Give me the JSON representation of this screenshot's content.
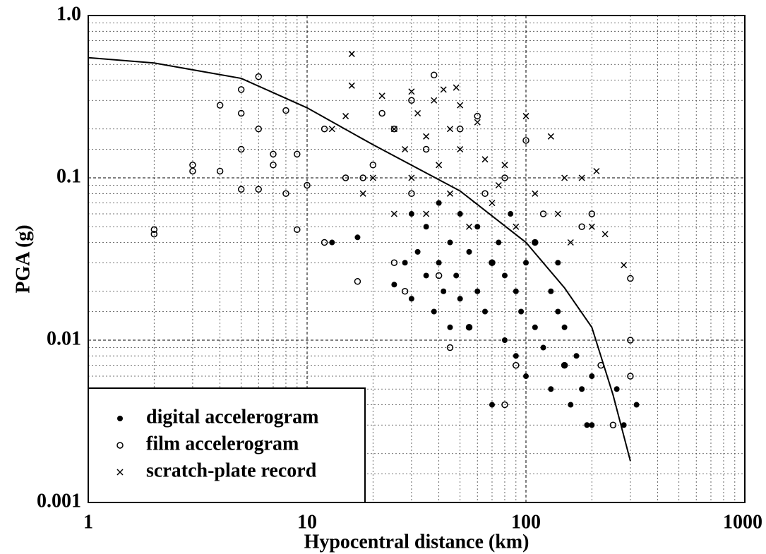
{
  "chart_data": {
    "type": "scatter",
    "xlabel": "Hypocentral distance (km)",
    "ylabel": "PGA (g)",
    "xlog": true,
    "ylog": true,
    "grid": true,
    "minor_grid": true,
    "legend": "lower left",
    "xlim": [
      1,
      1000
    ],
    "ylim": [
      0.001,
      1
    ],
    "xticks": [
      1,
      10,
      100,
      1000
    ],
    "yticks": [
      0.001,
      0.01,
      0.1,
      {
        "value": 1,
        "label": "1.0"
      }
    ],
    "series": [
      {
        "name": "digital accelerogram",
        "marker": "dot",
        "color": "#000000",
        "x": [
          13,
          17,
          25,
          28,
          30,
          30,
          32,
          35,
          35,
          38,
          40,
          40,
          42,
          45,
          45,
          48,
          50,
          50,
          55,
          55,
          60,
          60,
          65,
          70,
          70,
          75,
          80,
          80,
          85,
          90,
          90,
          95,
          100,
          100,
          110,
          110,
          120,
          130,
          130,
          140,
          140,
          150,
          150,
          160,
          170,
          180,
          190,
          200,
          200,
          260,
          280,
          320
        ],
        "values": [
          0.04,
          0.043,
          0.022,
          0.03,
          0.06,
          0.018,
          0.035,
          0.025,
          0.05,
          0.015,
          0.03,
          0.07,
          0.02,
          0.012,
          0.04,
          0.025,
          0.018,
          0.06,
          0.012,
          0.035,
          0.02,
          0.05,
          0.015,
          0.004,
          0.03,
          0.04,
          0.01,
          0.025,
          0.06,
          0.008,
          0.02,
          0.015,
          0.03,
          0.006,
          0.012,
          0.04,
          0.009,
          0.02,
          0.005,
          0.015,
          0.03,
          0.007,
          0.012,
          0.004,
          0.008,
          0.005,
          0.003,
          0.006,
          0.003,
          0.005,
          0.003,
          0.004
        ]
      },
      {
        "name": "film accelerogram",
        "marker": "circle",
        "color": "#000000",
        "x": [
          2,
          2,
          3,
          3,
          4,
          4,
          5,
          5,
          5,
          5,
          6,
          6,
          6,
          7,
          7,
          8,
          8,
          9,
          9,
          10,
          12,
          12,
          15,
          17,
          18,
          20,
          22,
          25,
          25,
          28,
          30,
          30,
          35,
          38,
          40,
          45,
          50,
          55,
          60,
          65,
          70,
          80,
          80,
          90,
          100,
          110,
          120,
          150,
          180,
          200,
          220,
          250,
          300,
          300,
          300
        ],
        "values": [
          0.048,
          0.045,
          0.12,
          0.11,
          0.28,
          0.11,
          0.35,
          0.25,
          0.15,
          0.085,
          0.42,
          0.2,
          0.085,
          0.14,
          0.12,
          0.26,
          0.08,
          0.14,
          0.048,
          0.09,
          0.2,
          0.04,
          0.1,
          0.023,
          0.1,
          0.12,
          0.25,
          0.2,
          0.03,
          0.02,
          0.3,
          0.08,
          0.15,
          0.43,
          0.025,
          0.009,
          0.2,
          0.012,
          0.24,
          0.08,
          0.03,
          0.004,
          0.1,
          0.007,
          0.17,
          0.04,
          0.06,
          0.007,
          0.05,
          0.06,
          0.007,
          0.003,
          0.024,
          0.01,
          0.006
        ]
      },
      {
        "name": "scratch-plate record",
        "marker": "cross",
        "color": "#000000",
        "x": [
          13,
          15,
          16,
          16,
          18,
          20,
          22,
          25,
          25,
          28,
          30,
          30,
          32,
          35,
          35,
          38,
          40,
          42,
          45,
          45,
          48,
          50,
          50,
          55,
          60,
          65,
          70,
          75,
          80,
          90,
          100,
          110,
          130,
          140,
          150,
          160,
          180,
          200,
          210,
          230,
          280
        ],
        "values": [
          0.2,
          0.24,
          0.58,
          0.37,
          0.08,
          0.1,
          0.32,
          0.06,
          0.2,
          0.15,
          0.34,
          0.1,
          0.25,
          0.18,
          0.06,
          0.3,
          0.12,
          0.35,
          0.2,
          0.08,
          0.36,
          0.15,
          0.28,
          0.05,
          0.22,
          0.13,
          0.07,
          0.09,
          0.12,
          0.05,
          0.24,
          0.08,
          0.18,
          0.06,
          0.1,
          0.04,
          0.1,
          0.05,
          0.11,
          0.045,
          0.029
        ]
      }
    ],
    "curve": {
      "color": "#000000",
      "x": [
        1,
        2,
        5,
        10,
        20,
        50,
        100,
        150,
        200,
        250,
        300
      ],
      "values": [
        0.55,
        0.51,
        0.41,
        0.27,
        0.16,
        0.083,
        0.04,
        0.021,
        0.012,
        0.0046,
        0.0018
      ]
    }
  }
}
